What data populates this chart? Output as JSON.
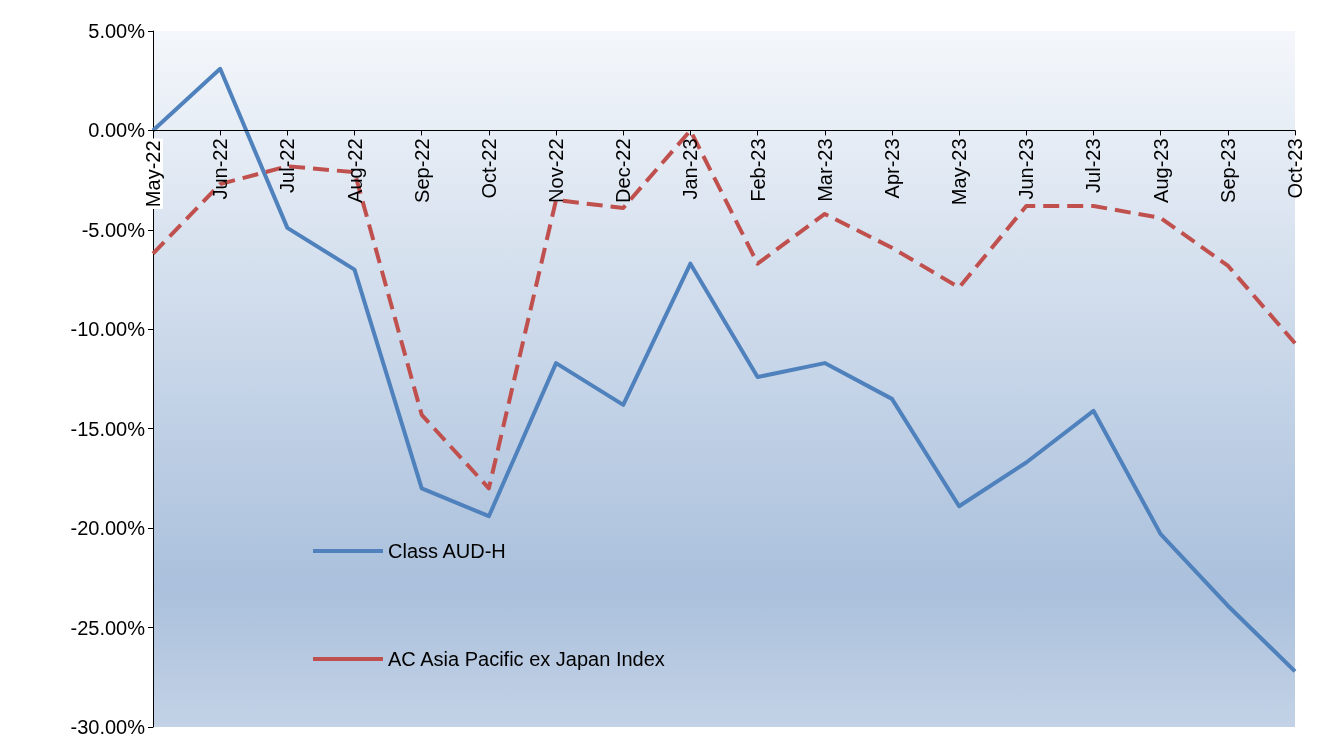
{
  "chart_data": {
    "type": "line",
    "categories": [
      "May-22",
      "Jun-22",
      "Jul-22",
      "Aug-22",
      "Sep-22",
      "Oct-22",
      "Nov-22",
      "Dec-22",
      "Jan-23",
      "Feb-23",
      "Mar-23",
      "Apr-23",
      "May-23",
      "Jun-23",
      "Jul-23",
      "Aug-23",
      "Sep-23",
      "Oct-23"
    ],
    "series": [
      {
        "name": "Class AUD-H",
        "color": "#4f81bd",
        "line_style": "solid",
        "values": [
          0,
          3.1,
          -4.9,
          -7.0,
          -18.0,
          -19.4,
          -11.7,
          -13.8,
          -6.7,
          -12.4,
          -11.7,
          -13.5,
          -18.9,
          -16.7,
          -14.1,
          -20.3,
          -23.9,
          -27.2
        ]
      },
      {
        "name": "AC Asia Pacific ex Japan Index",
        "color": "#c0504d",
        "line_style": "dashed",
        "values": [
          -6.2,
          -2.7,
          -1.8,
          -2.1,
          -14.3,
          -18.0,
          -3.5,
          -3.9,
          0.0,
          -6.7,
          -4.2,
          -5.9,
          -7.9,
          -3.8,
          -3.8,
          -4.4,
          -6.8,
          -10.7
        ]
      }
    ],
    "ylim": [
      -30,
      5
    ],
    "yticks": [
      {
        "value": 5,
        "label": "5.00%"
      },
      {
        "value": 0,
        "label": "0.00%"
      },
      {
        "value": -5,
        "label": "-5.00%"
      },
      {
        "value": -10,
        "label": "-10.00%"
      },
      {
        "value": -15,
        "label": "-15.00%"
      },
      {
        "value": -20,
        "label": "-20.00%"
      },
      {
        "value": -25,
        "label": "-25.00%"
      },
      {
        "value": -30,
        "label": "-30.00%"
      }
    ],
    "grid": false,
    "legend": "bottom left",
    "marker": "none"
  }
}
